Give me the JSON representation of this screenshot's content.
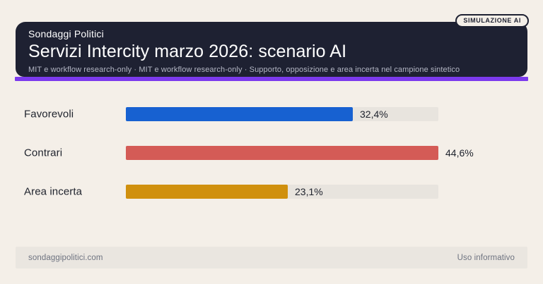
{
  "page": {
    "background": "#f4efe8"
  },
  "header": {
    "brand": "Sondaggi Politici",
    "title": "Servizi Intercity marzo 2026: scenario AI",
    "subtitle": "MIT e workflow research-only · MIT e workflow research-only · Supporto, opposizione e area incerta nel campione sintetico",
    "badge": "SIMULAZIONE AI",
    "background_color": "#1e2132",
    "accent_bar_color": "#7c3aed"
  },
  "chart_data": {
    "type": "bar",
    "orientation": "horizontal",
    "title": "Servizi Intercity marzo 2026: scenario AI",
    "categories": [
      "Favorevoli",
      "Contrari",
      "Area incerta"
    ],
    "values": [
      32.4,
      44.6,
      23.1
    ],
    "value_labels": [
      "32,4%",
      "44,6%",
      "23,1%"
    ],
    "bar_colors": [
      "#1761d1",
      "#d45b56",
      "#d0900e"
    ],
    "track_color": "#e8e4de",
    "xlim": [
      0,
      44.6
    ],
    "unit": "%",
    "grid": false,
    "legend": false
  },
  "footer": {
    "left": "sondaggipolitici.com",
    "right": "Uso informativo"
  }
}
